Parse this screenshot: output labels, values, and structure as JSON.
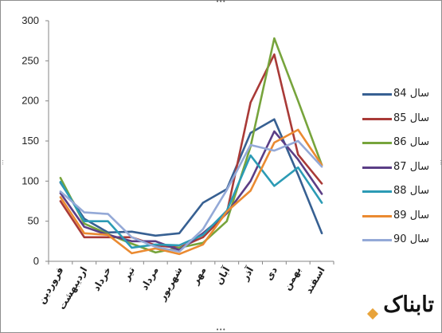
{
  "chart_data": {
    "type": "line",
    "categories": [
      "فروردین",
      "اردیبهشت",
      "خرداد",
      "تیر",
      "مرداد",
      "شهریور",
      "مهر",
      "آبان",
      "آذر",
      "دی",
      "بهمن",
      "اسفند"
    ],
    "yticks": [
      0,
      50,
      100,
      150,
      200,
      250,
      300
    ],
    "ylim": [
      0,
      300
    ],
    "grid": false,
    "legend_position": "right",
    "series": [
      {
        "name": "سال 84",
        "color": "#376092",
        "values": [
          98,
          53,
          36,
          37,
          32,
          35,
          73,
          90,
          160,
          177,
          108,
          35
        ]
      },
      {
        "name": "سال 85",
        "color": "#a93a37",
        "values": [
          75,
          30,
          30,
          30,
          20,
          17,
          30,
          60,
          198,
          258,
          133,
          97
        ]
      },
      {
        "name": "سال 86",
        "color": "#77a43c",
        "values": [
          104,
          47,
          34,
          22,
          11,
          17,
          23,
          50,
          143,
          278,
          200,
          120
        ]
      },
      {
        "name": "سال 87",
        "color": "#5b3e86",
        "values": [
          85,
          43,
          33,
          25,
          25,
          14,
          35,
          60,
          100,
          162,
          127,
          84
        ]
      },
      {
        "name": "سال 88",
        "color": "#2c9bb5",
        "values": [
          99,
          50,
          50,
          17,
          21,
          20,
          33,
          63,
          132,
          94,
          117,
          73
        ]
      },
      {
        "name": "سال 89",
        "color": "#ea8a31",
        "values": [
          80,
          35,
          33,
          10,
          16,
          9,
          21,
          62,
          88,
          148,
          164,
          120
        ]
      },
      {
        "name": "سال 90",
        "color": "#94a9d7",
        "values": [
          87,
          61,
          59,
          30,
          18,
          12,
          40,
          89,
          145,
          138,
          150,
          118
        ]
      }
    ]
  },
  "logo": {
    "text": "تابناک"
  }
}
